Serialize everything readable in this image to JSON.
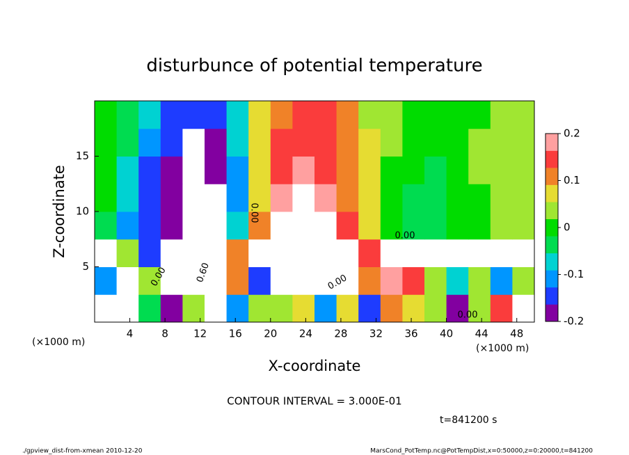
{
  "chart_data": {
    "type": "heatmap",
    "title": "disturbunce of potential temperature",
    "xlabel": "X-coordinate",
    "ylabel": "Z-coordinate",
    "x_unit_left": "(×1000 m)",
    "x_unit_right": "(×1000 m)",
    "xlim": [
      0,
      50
    ],
    "ylim": [
      0,
      20
    ],
    "xticks": [
      4,
      8,
      12,
      16,
      20,
      24,
      28,
      32,
      36,
      40,
      44,
      48
    ],
    "yticks": [
      5,
      10,
      15
    ],
    "x_bins": [
      0,
      2.5,
      5,
      7.5,
      10,
      12.5,
      15,
      17.5,
      20,
      22.5,
      25,
      27.5,
      30,
      32.5,
      35,
      37.5,
      40,
      42.5,
      45,
      47.5,
      50
    ],
    "z_bins": [
      0,
      2.5,
      5,
      7.5,
      10,
      12.5,
      15,
      17.5,
      20
    ],
    "values": [
      [
        0.3,
        0.3,
        -0.05,
        -0.18,
        0.05,
        0.3,
        -0.1,
        0.02,
        0.05,
        0.08,
        -0.12,
        0.06,
        -0.15,
        0.12,
        0.08,
        0.03,
        -0.18,
        0.02,
        0.15,
        0.3
      ],
      [
        -0.12,
        0.3,
        0.02,
        0.3,
        -0.3,
        0.3,
        0.1,
        -0.15,
        0.3,
        0.3,
        0.3,
        0.3,
        0.1,
        0.2,
        0.15,
        0.02,
        -0.08,
        0.05,
        -0.1,
        0.05
      ],
      [
        0.3,
        0.05,
        -0.15,
        0.3,
        0.3,
        -0.3,
        0.12,
        0.3,
        0.3,
        0.3,
        0.3,
        0.3,
        0.15,
        -0.3,
        0.3,
        -0.3,
        0.3,
        0.3,
        0.3,
        -0.3
      ],
      [
        -0.03,
        -0.12,
        -0.16,
        -0.2,
        -0.3,
        -0.22,
        -0.08,
        0.1,
        0.22,
        0.3,
        0.22,
        0.13,
        0.06,
        0,
        -0.04,
        -0.02,
        0,
        0.01,
        0.02,
        0.02
      ],
      [
        -0.01,
        -0.08,
        -0.15,
        -0.19,
        -0.3,
        -0.22,
        -0.1,
        0.09,
        0.17,
        0.25,
        0.18,
        0.12,
        0.06,
        0,
        -0.02,
        -0.02,
        0,
        0.01,
        0.03,
        0.03
      ],
      [
        0,
        -0.06,
        -0.13,
        -0.18,
        -0.3,
        -0.2,
        -0.1,
        0.08,
        0.14,
        0.17,
        0.15,
        0.11,
        0.06,
        0.01,
        -0.01,
        -0.02,
        0,
        0.02,
        0.03,
        0.04
      ],
      [
        0,
        -0.04,
        -0.1,
        -0.16,
        -0.25,
        -0.18,
        -0.09,
        0.07,
        0.13,
        0.16,
        0.15,
        0.11,
        0.06,
        0.02,
        0,
        -0.01,
        0,
        0.02,
        0.03,
        0.04
      ],
      [
        0,
        -0.03,
        -0.08,
        -0.13,
        -0.16,
        -0.14,
        -0.08,
        0.06,
        0.12,
        0.15,
        0.14,
        0.1,
        0.05,
        0.02,
        0,
        -0.01,
        0,
        0.01,
        0.03,
        0.04
      ]
    ],
    "clim": [
      -0.2,
      0.2
    ],
    "cticks": [
      -0.2,
      -0.1,
      0,
      0.1,
      0.2
    ],
    "colormap": [
      "#8200a0",
      "#1e3cff",
      "#0096ff",
      "#00d2d2",
      "#00dc50",
      "#00dc00",
      "#a0e632",
      "#e6dc32",
      "#f08228",
      "#fa3c3c",
      "#ffa0a0"
    ],
    "out_of_range_color": "#ffffff",
    "contour_labels": [
      "0.00",
      "0.00",
      "0.60",
      "0.00",
      "0.00",
      "0.00"
    ],
    "contour_info": "CONTOUR INTERVAL = 3.000E-01",
    "time_label": "t=841200 s",
    "footer_left": "./gpview_dist-from-xmean  2010-12-20",
    "footer_right": "MarsCond_PotTemp.nc@PotTempDist,x=0:50000,z=0:20000,t=841200"
  }
}
